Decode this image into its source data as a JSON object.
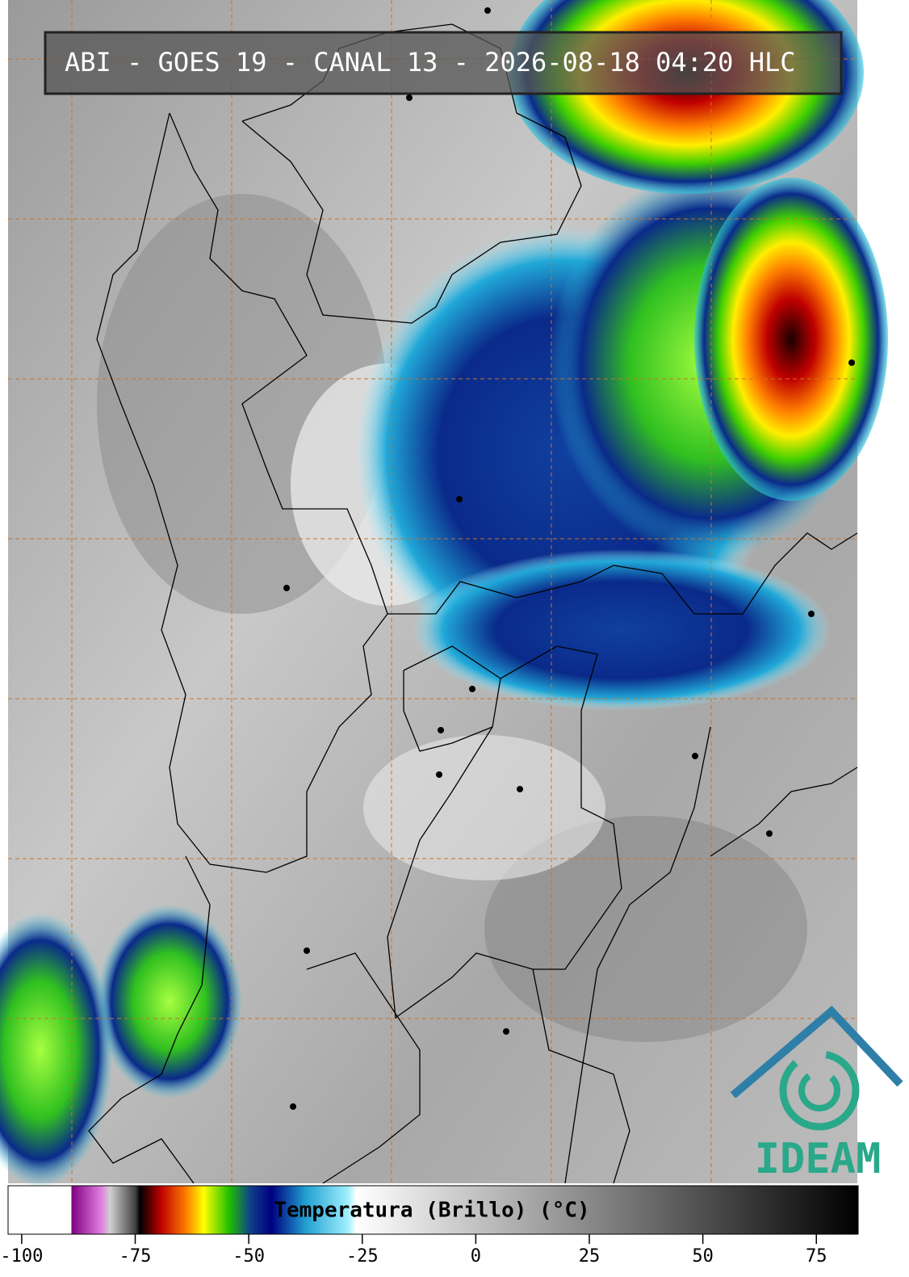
{
  "header": {
    "title": "ABI - GOES 19 - CANAL 13 - 2026-08-18 04:20 HLC"
  },
  "colorbar": {
    "label": "Temperatura (Brillo) (°C)",
    "xlim": [
      -103,
      84.2
    ],
    "xticks": [
      -100,
      -75,
      -50,
      -25,
      0,
      25,
      50,
      75
    ]
  },
  "logo": {
    "text": "IDEAM"
  }
}
